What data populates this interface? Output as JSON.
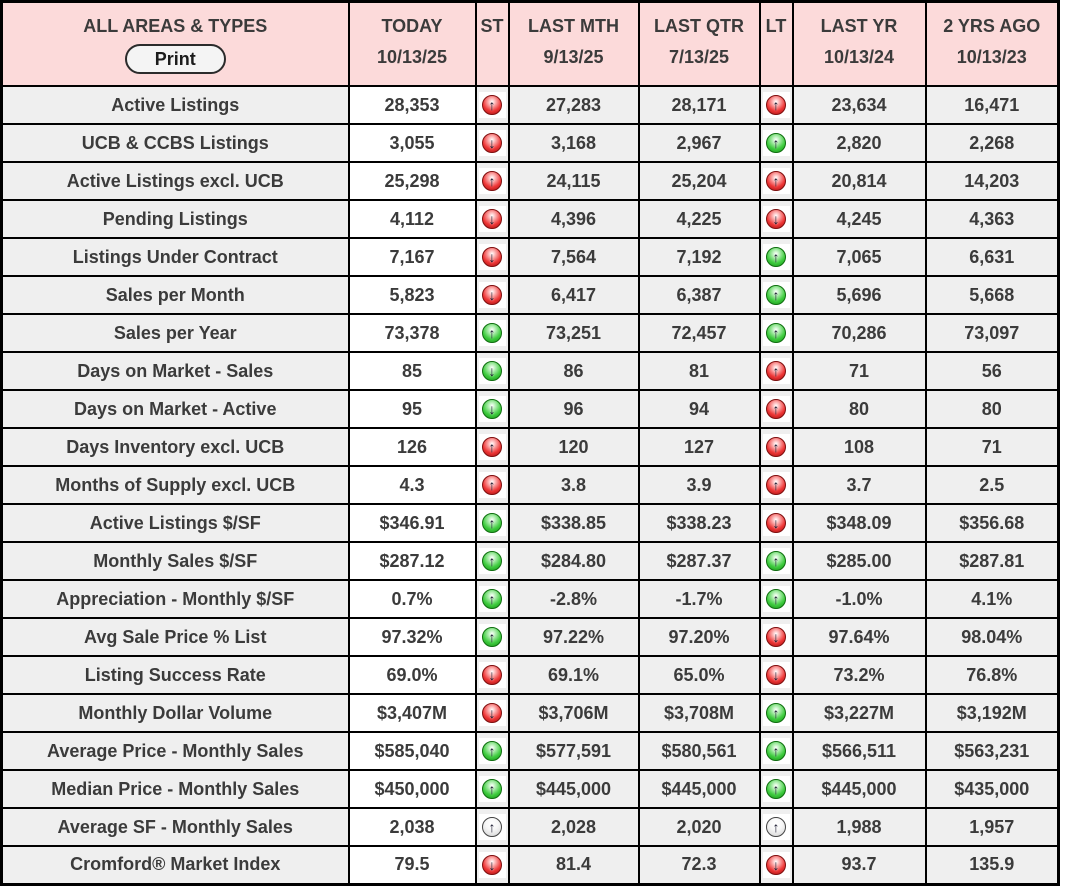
{
  "table": {
    "title": "ALL AREAS & TYPES",
    "print_label": "Print",
    "header": {
      "columns": [
        {
          "label": "TODAY",
          "date": "10/13/25"
        },
        {
          "label": "ST",
          "date": ""
        },
        {
          "label": "LAST MTH",
          "date": "9/13/25"
        },
        {
          "label": "LAST QTR",
          "date": "7/13/25"
        },
        {
          "label": "LT",
          "date": ""
        },
        {
          "label": "LAST YR",
          "date": "10/13/24"
        },
        {
          "label": "2 YRS AGO",
          "date": "10/13/23"
        }
      ]
    },
    "rows": [
      {
        "label": "Active Listings",
        "today": "28,353",
        "st": "red-up",
        "last_mth": "27,283",
        "last_qtr": "28,171",
        "lt": "red-up",
        "last_yr": "23,634",
        "two_yrs_ago": "16,471"
      },
      {
        "label": "UCB & CCBS Listings",
        "today": "3,055",
        "st": "red-down",
        "last_mth": "3,168",
        "last_qtr": "2,967",
        "lt": "green-up",
        "last_yr": "2,820",
        "two_yrs_ago": "2,268"
      },
      {
        "label": "Active Listings excl. UCB",
        "today": "25,298",
        "st": "red-up",
        "last_mth": "24,115",
        "last_qtr": "25,204",
        "lt": "red-up",
        "last_yr": "20,814",
        "two_yrs_ago": "14,203"
      },
      {
        "label": "Pending Listings",
        "today": "4,112",
        "st": "red-down",
        "last_mth": "4,396",
        "last_qtr": "4,225",
        "lt": "red-down",
        "last_yr": "4,245",
        "two_yrs_ago": "4,363"
      },
      {
        "label": "Listings Under Contract",
        "today": "7,167",
        "st": "red-down",
        "last_mth": "7,564",
        "last_qtr": "7,192",
        "lt": "green-up",
        "last_yr": "7,065",
        "two_yrs_ago": "6,631"
      },
      {
        "label": "Sales per Month",
        "today": "5,823",
        "st": "red-down",
        "last_mth": "6,417",
        "last_qtr": "6,387",
        "lt": "green-up",
        "last_yr": "5,696",
        "two_yrs_ago": "5,668"
      },
      {
        "label": "Sales per Year",
        "today": "73,378",
        "st": "green-up",
        "last_mth": "73,251",
        "last_qtr": "72,457",
        "lt": "green-up",
        "last_yr": "70,286",
        "two_yrs_ago": "73,097"
      },
      {
        "label": "Days on Market - Sales",
        "today": "85",
        "st": "green-down",
        "last_mth": "86",
        "last_qtr": "81",
        "lt": "red-up",
        "last_yr": "71",
        "two_yrs_ago": "56"
      },
      {
        "label": "Days on Market - Active",
        "today": "95",
        "st": "green-down",
        "last_mth": "96",
        "last_qtr": "94",
        "lt": "red-up",
        "last_yr": "80",
        "two_yrs_ago": "80"
      },
      {
        "label": "Days Inventory excl. UCB",
        "today": "126",
        "st": "red-up",
        "last_mth": "120",
        "last_qtr": "127",
        "lt": "red-up",
        "last_yr": "108",
        "two_yrs_ago": "71"
      },
      {
        "label": "Months of Supply excl. UCB",
        "today": "4.3",
        "st": "red-up",
        "last_mth": "3.8",
        "last_qtr": "3.9",
        "lt": "red-up",
        "last_yr": "3.7",
        "two_yrs_ago": "2.5"
      },
      {
        "label": "Active Listings $/SF",
        "today": "$346.91",
        "st": "green-up",
        "last_mth": "$338.85",
        "last_qtr": "$338.23",
        "lt": "red-down",
        "last_yr": "$348.09",
        "two_yrs_ago": "$356.68"
      },
      {
        "label": "Monthly Sales $/SF",
        "today": "$287.12",
        "st": "green-up",
        "last_mth": "$284.80",
        "last_qtr": "$287.37",
        "lt": "green-up",
        "last_yr": "$285.00",
        "two_yrs_ago": "$287.81"
      },
      {
        "label": "Appreciation - Monthly $/SF",
        "today": "0.7%",
        "st": "green-up",
        "last_mth": "-2.8%",
        "last_qtr": "-1.7%",
        "lt": "green-up",
        "last_yr": "-1.0%",
        "two_yrs_ago": "4.1%"
      },
      {
        "label": "Avg Sale Price % List",
        "today": "97.32%",
        "st": "green-up",
        "last_mth": "97.22%",
        "last_qtr": "97.20%",
        "lt": "red-down",
        "last_yr": "97.64%",
        "two_yrs_ago": "98.04%"
      },
      {
        "label": "Listing Success Rate",
        "today": "69.0%",
        "st": "red-down",
        "last_mth": "69.1%",
        "last_qtr": "65.0%",
        "lt": "red-down",
        "last_yr": "73.2%",
        "two_yrs_ago": "76.8%"
      },
      {
        "label": "Monthly Dollar Volume",
        "today": "$3,407M",
        "st": "red-down",
        "last_mth": "$3,706M",
        "last_qtr": "$3,708M",
        "lt": "green-up",
        "last_yr": "$3,227M",
        "two_yrs_ago": "$3,192M"
      },
      {
        "label": "Average Price - Monthly Sales",
        "today": "$585,040",
        "st": "green-up",
        "last_mth": "$577,591",
        "last_qtr": "$580,561",
        "lt": "green-up",
        "last_yr": "$566,511",
        "two_yrs_ago": "$563,231"
      },
      {
        "label": "Median Price - Monthly Sales",
        "today": "$450,000",
        "st": "green-up",
        "last_mth": "$445,000",
        "last_qtr": "$445,000",
        "lt": "green-up",
        "last_yr": "$445,000",
        "two_yrs_ago": "$435,000"
      },
      {
        "label": "Average SF - Monthly Sales",
        "today": "2,038",
        "st": "neutral-up",
        "last_mth": "2,028",
        "last_qtr": "2,020",
        "lt": "neutral-up",
        "last_yr": "1,988",
        "two_yrs_ago": "1,957"
      },
      {
        "label": "Cromford® Market Index",
        "today": "79.5",
        "st": "red-down",
        "last_mth": "81.4",
        "last_qtr": "72.3",
        "lt": "red-down",
        "last_yr": "93.7",
        "two_yrs_ago": "135.9"
      }
    ]
  },
  "colors": {
    "header_background": "#fcdada",
    "row_label_background": "#efefef",
    "today_cell_background": "#ffffff",
    "border": "#000000",
    "text": "#3b3b3b",
    "trend_up_good": "#3ecc3e",
    "trend_down_bad": "#ee3535",
    "trend_neutral": "#f0f0f0"
  },
  "icons": {
    "up_glyph": "↑",
    "down_glyph": "↓"
  }
}
